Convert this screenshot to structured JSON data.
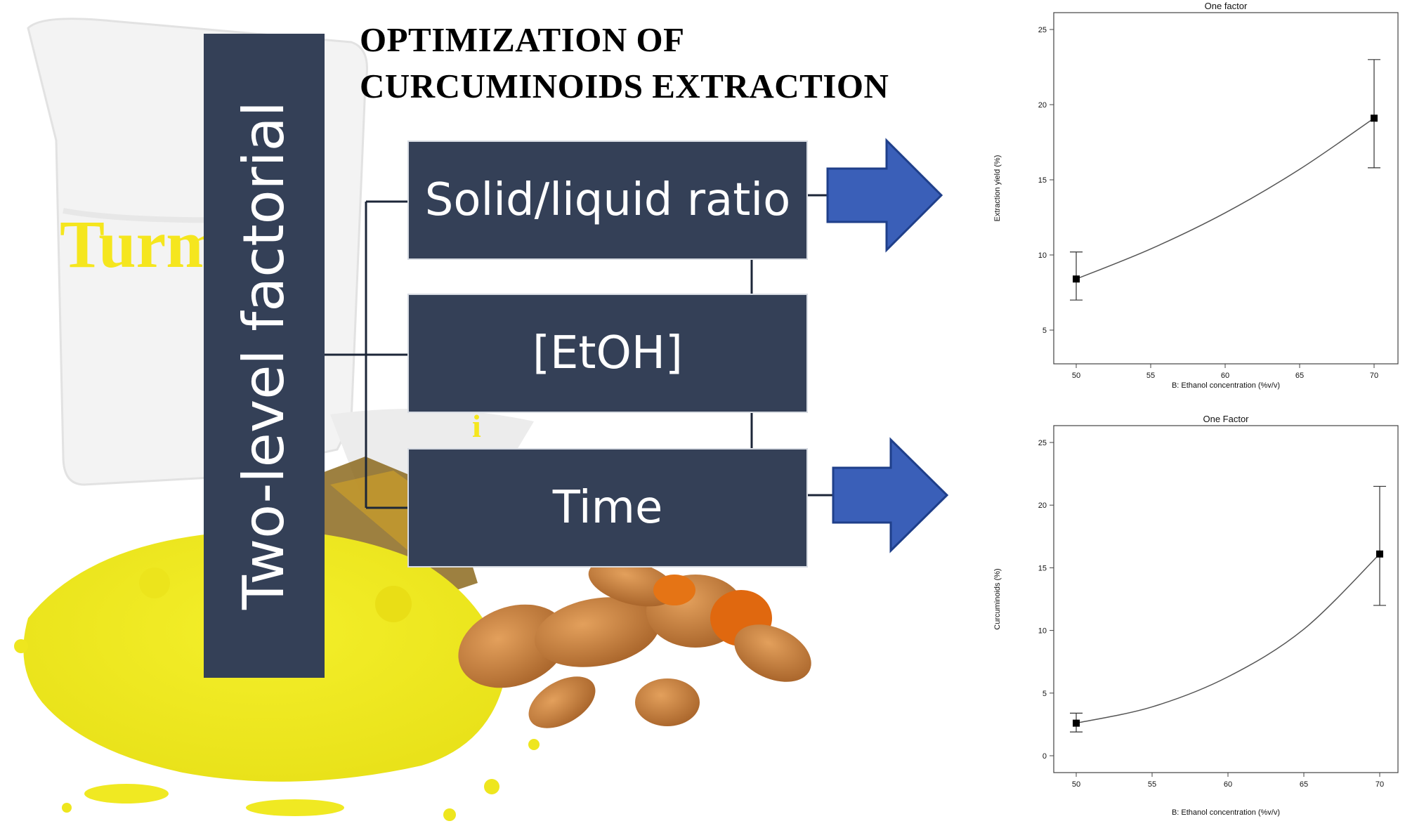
{
  "title": {
    "line1": "OPTIMIZATION OF",
    "line2": "CURCUMINOIDS EXTRACTION"
  },
  "method_label": "Two-level factorial",
  "factors": [
    "Solid/liquid ratio",
    "[EtOH]",
    "Time"
  ],
  "photo": {
    "bag_label": "Turm",
    "bag_label_fragment": "i"
  },
  "colors": {
    "box_fill": "#344057",
    "arrow_fill": "#3a5fb8",
    "powder": "#f2ec1e",
    "root": "#d98a3a"
  },
  "chart_data": [
    {
      "type": "line",
      "title": "One factor",
      "xlabel": "B: Ethanol concentration  (%v/v)",
      "ylabel": "Extraction yield (%)",
      "xlim": [
        50,
        70
      ],
      "ylim": [
        5,
        25
      ],
      "xticks": [
        50,
        55,
        60,
        65,
        70
      ],
      "yticks": [
        5,
        10,
        15,
        20,
        25
      ],
      "curve": {
        "x": [
          50,
          55,
          60,
          65,
          70
        ],
        "y": [
          8.4,
          10.4,
          12.8,
          15.7,
          19.1
        ]
      },
      "points": [
        {
          "x": 50,
          "y": 8.4,
          "low": 7.0,
          "high": 10.2
        },
        {
          "x": 70,
          "y": 19.1,
          "high": 23.0,
          "low": 15.8
        }
      ],
      "grid": false
    },
    {
      "type": "line",
      "title": "One Factor",
      "xlabel": "B: Ethanol concentration  (%v/v)",
      "ylabel": "Curcuminoids (%)",
      "xlim": [
        50,
        70
      ],
      "ylim": [
        0,
        25
      ],
      "xticks": [
        50,
        55,
        60,
        65,
        70
      ],
      "yticks": [
        0,
        5,
        10,
        15,
        20,
        25
      ],
      "curve": {
        "x": [
          50,
          55,
          60,
          65,
          70
        ],
        "y": [
          2.6,
          3.9,
          6.3,
          10.1,
          16.1
        ]
      },
      "points": [
        {
          "x": 50,
          "y": 2.6,
          "low": 1.9,
          "high": 3.4
        },
        {
          "x": 70,
          "y": 16.1,
          "low": 12.0,
          "high": 21.5
        }
      ],
      "grid": false
    }
  ]
}
